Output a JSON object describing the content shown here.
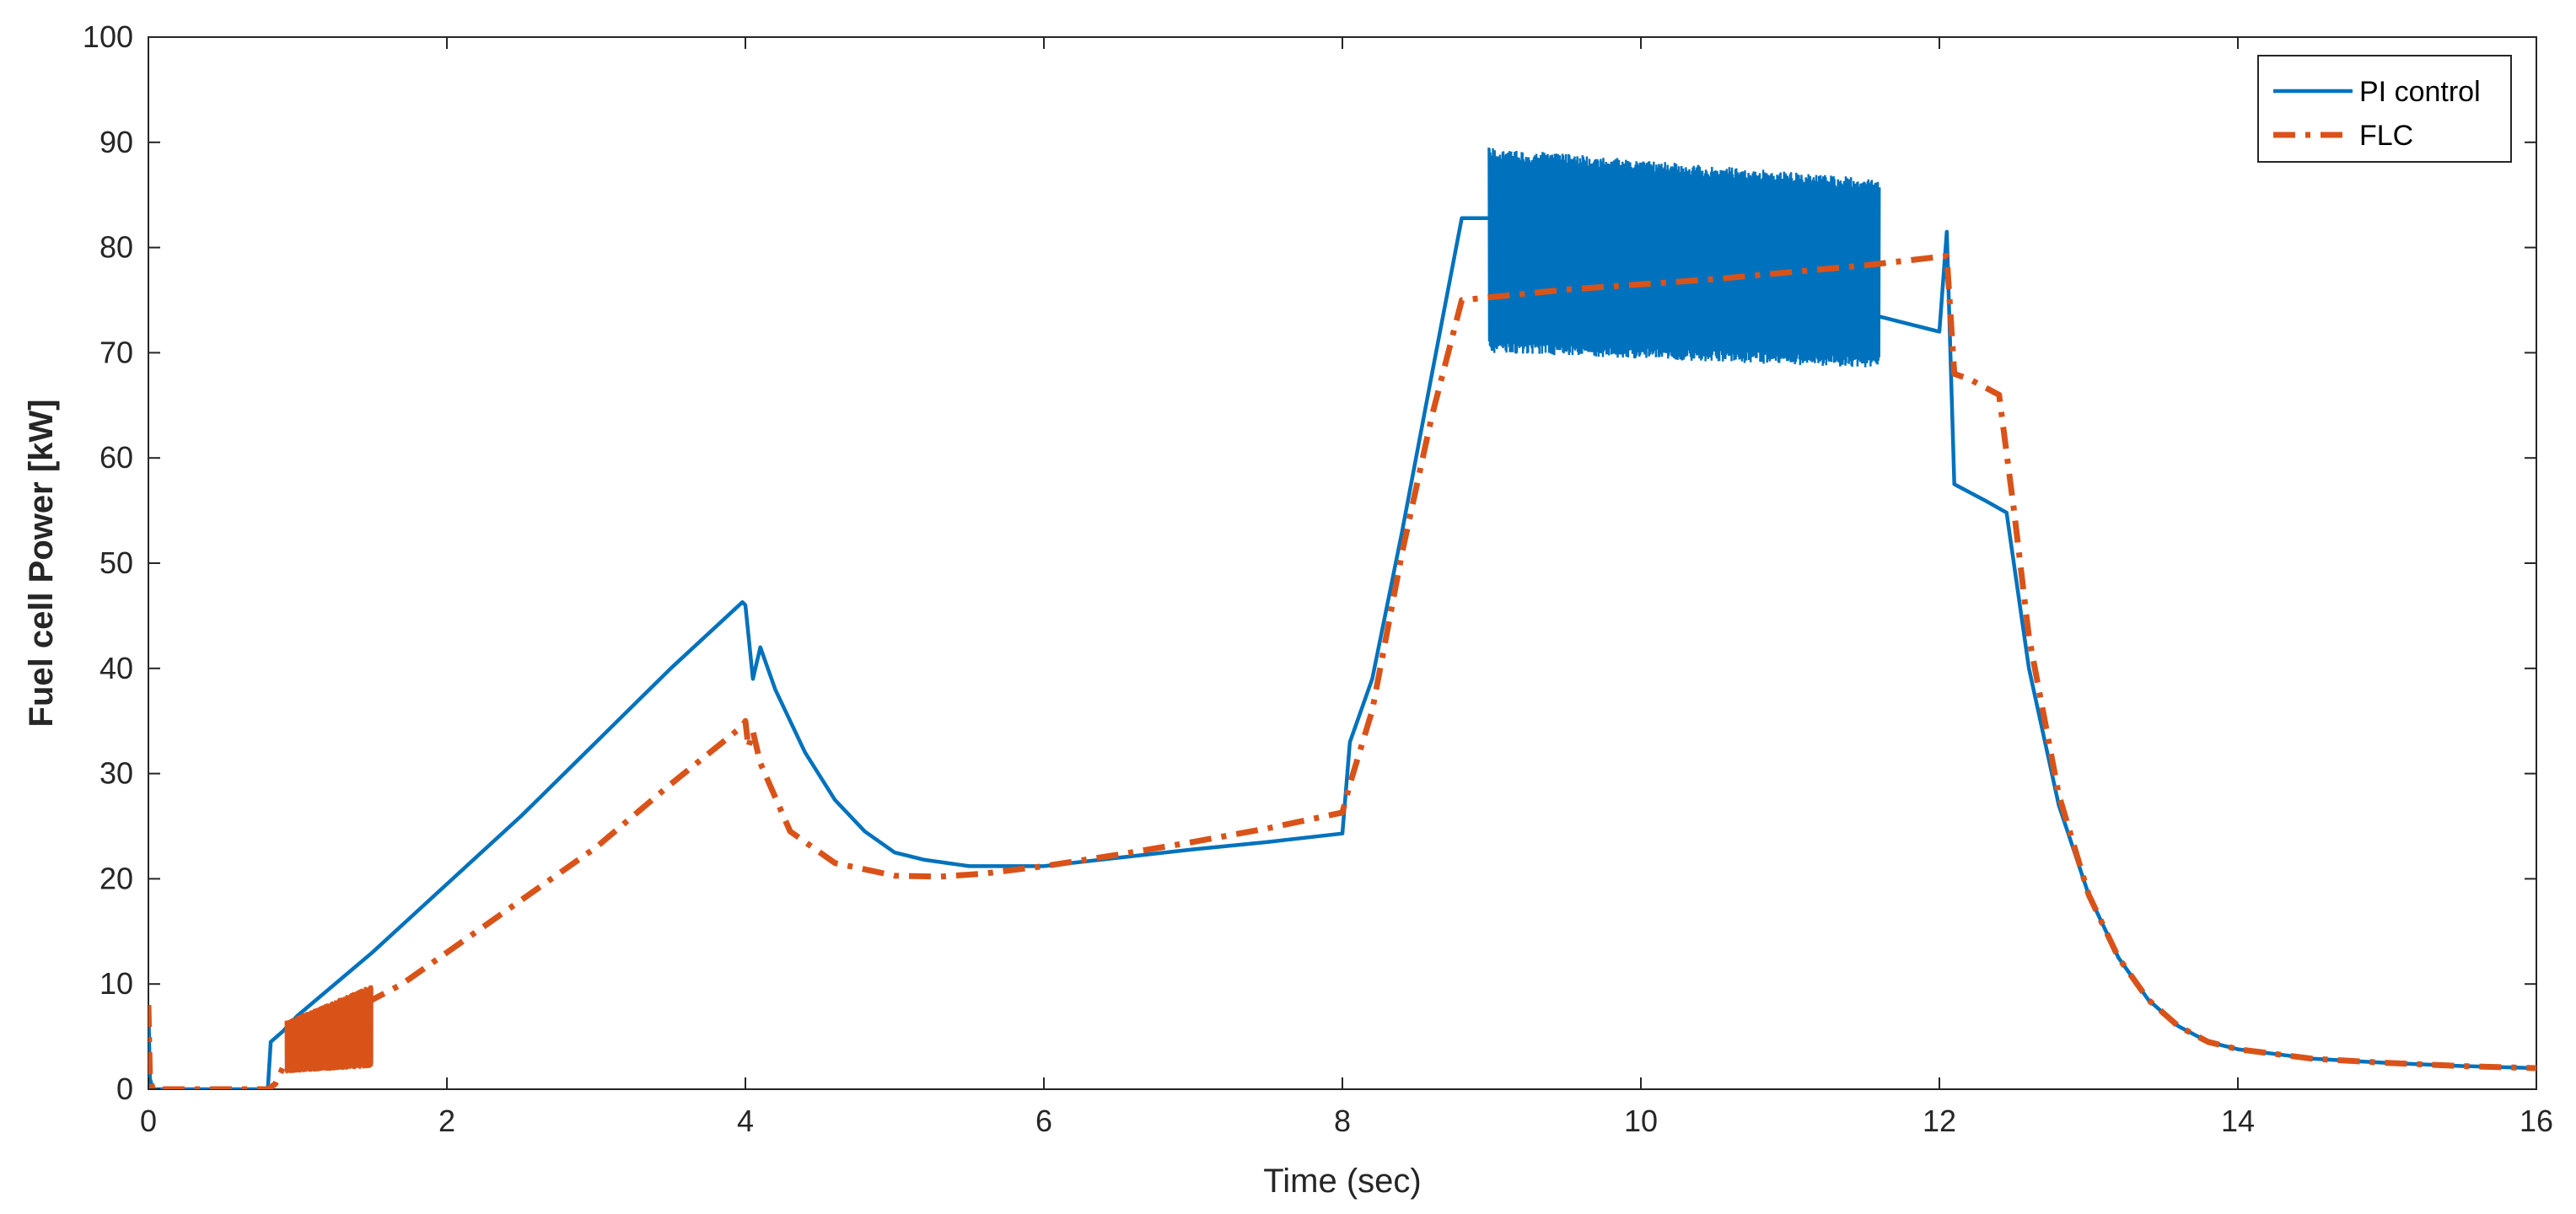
{
  "colors": {
    "pi": "#0072BD",
    "flc": "#D95319",
    "axis": "#262626"
  },
  "chart_data": {
    "type": "line",
    "title": "",
    "xlabel": "Time (sec)",
    "ylabel": "Fuel cell Power [kW]",
    "xlim": [
      0,
      16
    ],
    "ylim": [
      0,
      100
    ],
    "xticks": [
      0,
      2,
      4,
      6,
      8,
      10,
      12,
      14,
      16
    ],
    "yticks": [
      0,
      10,
      20,
      30,
      40,
      50,
      60,
      70,
      80,
      90,
      100
    ],
    "grid": false,
    "legend": "top-right",
    "series": [
      {
        "name": "PI control",
        "style": "solid",
        "x": [
          0,
          0.01,
          0.03,
          0.05,
          0.8,
          0.82,
          0.9,
          1.0,
          1.5,
          2.0,
          2.5,
          3.0,
          3.5,
          3.98,
          4.0,
          4.05,
          4.1,
          4.2,
          4.4,
          4.6,
          4.8,
          5.0,
          5.2,
          5.5,
          6.0,
          6.5,
          7.0,
          7.5,
          8.0,
          8.05,
          8.2,
          8.4,
          8.6,
          8.8,
          8.98,
          12.0,
          12.05,
          12.1,
          12.3,
          12.45,
          12.6,
          12.8,
          13.0,
          13.2,
          13.4,
          13.6,
          13.8,
          14.0,
          14.5,
          15.0,
          15.5,
          16.0
        ],
        "y": [
          8,
          1,
          0,
          0,
          0,
          4.5,
          5.5,
          7,
          13,
          19.5,
          26,
          33,
          40,
          46.3,
          46,
          39,
          42,
          38,
          32,
          27.5,
          24.5,
          22.5,
          21.8,
          21.2,
          21.2,
          22,
          22.8,
          23.5,
          24.3,
          33,
          39,
          53,
          68,
          82.8,
          82.8,
          72,
          81.5,
          57.5,
          56,
          54.8,
          40,
          27,
          18.5,
          12.5,
          8.5,
          6,
          4.5,
          3.8,
          2.9,
          2.5,
          2.2,
          2.0
        ],
        "oscillations": [
          {
            "x": [
              8.98,
              11.6
            ],
            "min": [
              70,
              68.5
            ],
            "max": [
              89.5,
              86.5
            ],
            "note": "high-frequency oscillation band"
          }
        ]
      },
      {
        "name": "FLC",
        "style": "dashdot",
        "x": [
          0,
          0.01,
          0.03,
          0.05,
          0.8,
          0.85,
          0.9,
          1.0,
          1.2,
          1.5,
          1.7,
          2.0,
          2.5,
          3.0,
          3.5,
          3.98,
          4.0,
          4.02,
          4.05,
          4.1,
          4.3,
          4.6,
          5.0,
          5.3,
          5.6,
          6.0,
          6.5,
          7.0,
          7.5,
          8.0,
          8.05,
          8.2,
          8.4,
          8.6,
          8.8,
          9.5,
          10.5,
          11.5,
          12.05,
          12.1,
          12.2,
          12.4,
          12.5,
          12.6,
          12.8,
          13.0,
          13.2,
          13.4,
          13.6,
          13.8,
          14.0,
          14.5,
          15.0,
          15.5,
          16.0
        ],
        "y": [
          8,
          1,
          0,
          0,
          0,
          0.5,
          2,
          3,
          5.5,
          8.5,
          10,
          13,
          18,
          23,
          29,
          34.5,
          35,
          32.5,
          34,
          31,
          24.5,
          21.5,
          20.3,
          20.2,
          20.5,
          21.2,
          22.3,
          23.5,
          24.8,
          26.3,
          29,
          36,
          51,
          64,
          75,
          76,
          77,
          78.3,
          79.2,
          68,
          67.5,
          66,
          55,
          43,
          28,
          18.5,
          12.5,
          8.5,
          6,
          4.5,
          3.8,
          2.9,
          2.5,
          2.2,
          2.0
        ],
        "oscillations": [
          {
            "x": [
              0.92,
              1.5
            ],
            "min": [
              1.5,
              2
            ],
            "max": [
              6.5,
              10
            ],
            "note": "high-frequency oscillation band"
          }
        ]
      }
    ]
  }
}
